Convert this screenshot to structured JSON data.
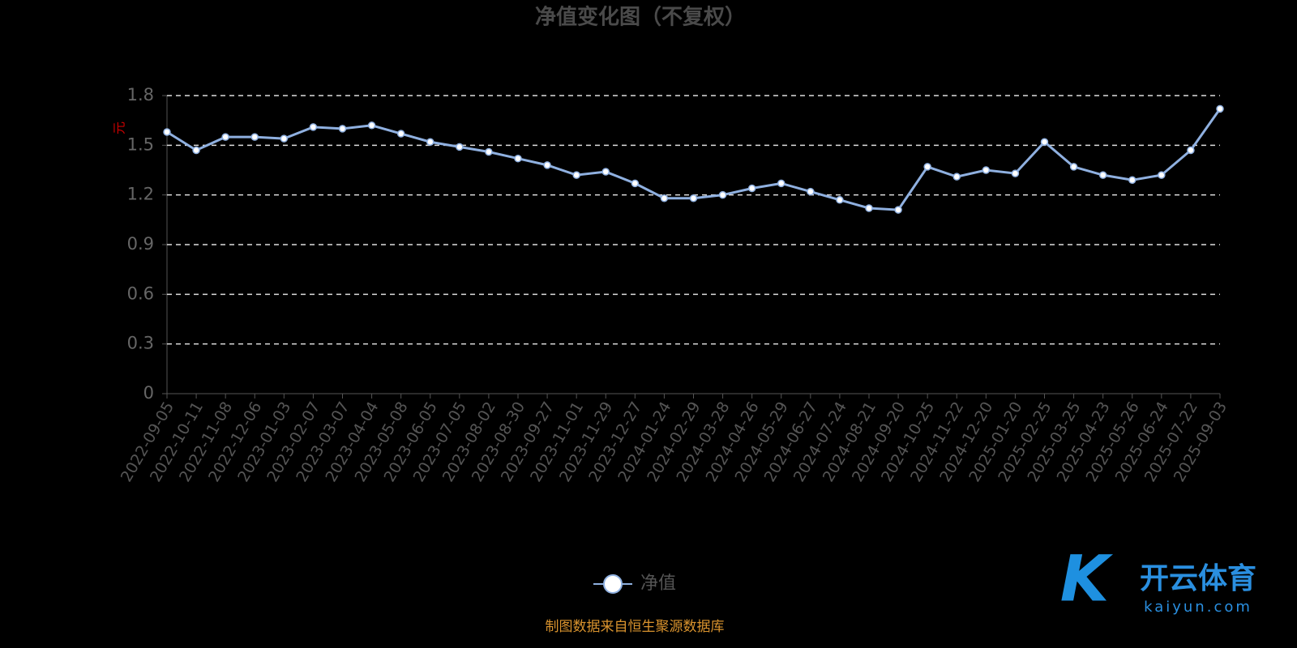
{
  "chart_data": {
    "type": "line",
    "title": "净值变化图（不复权）",
    "y_label": "元",
    "categories": [
      "2022-09-05",
      "2022-10-11",
      "2022-11-08",
      "2022-12-06",
      "2023-01-03",
      "2023-02-07",
      "2023-03-07",
      "2023-04-04",
      "2023-05-08",
      "2023-06-05",
      "2023-07-05",
      "2023-08-02",
      "2023-08-30",
      "2023-09-27",
      "2023-11-01",
      "2023-11-29",
      "2023-12-27",
      "2024-01-24",
      "2024-02-29",
      "2024-03-28",
      "2024-04-26",
      "2024-05-29",
      "2024-06-27",
      "2024-07-24",
      "2024-08-21",
      "2024-09-20",
      "2024-10-25",
      "2024-11-22",
      "2024-12-20",
      "2025-01-20",
      "2025-02-25",
      "2025-03-25",
      "2025-04-23",
      "2025-05-26",
      "2025-06-24",
      "2025-07-22",
      "2025-09-03"
    ],
    "series": [
      {
        "name": "净值",
        "color": "#8fb0e0",
        "values": [
          1.58,
          1.47,
          1.55,
          1.55,
          1.54,
          1.61,
          1.6,
          1.62,
          1.57,
          1.52,
          1.49,
          1.46,
          1.42,
          1.38,
          1.32,
          1.34,
          1.27,
          1.18,
          1.18,
          1.2,
          1.24,
          1.27,
          1.22,
          1.17,
          1.12,
          1.11,
          1.37,
          1.31,
          1.35,
          1.33,
          1.52,
          1.37,
          1.32,
          1.29,
          1.32,
          1.47,
          1.72
        ]
      }
    ],
    "ylim": [
      0,
      1.8
    ],
    "yticks": [
      0,
      0.3,
      0.6,
      0.9,
      1.2,
      1.5,
      1.8
    ],
    "grid": true,
    "source": "制图数据来自恒生聚源数据库"
  },
  "watermark": {
    "name": "开云体育",
    "url": "kaiyun.com"
  }
}
